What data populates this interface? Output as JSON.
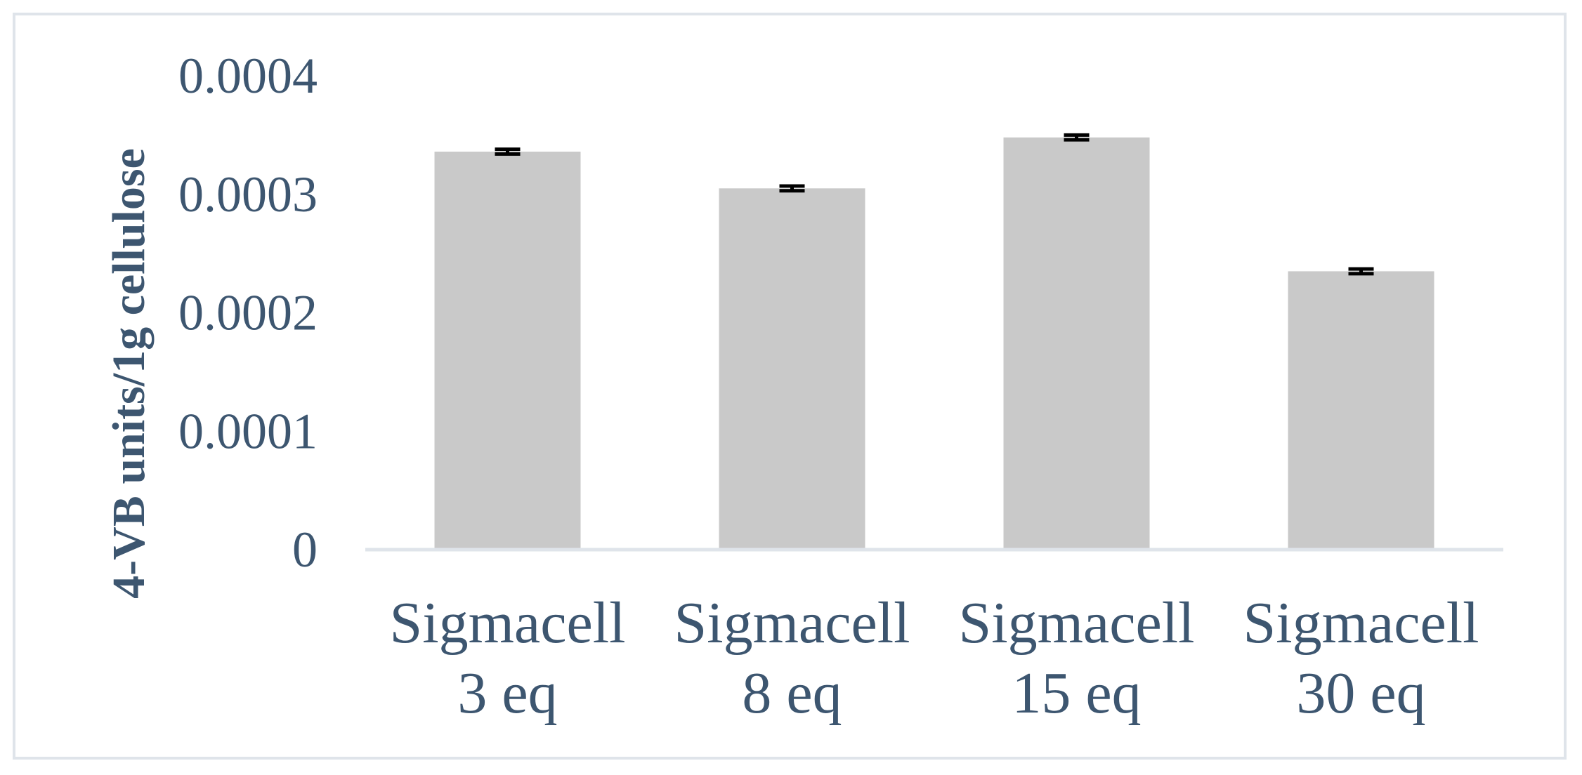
{
  "chart_data": {
    "type": "bar",
    "title": "",
    "xlabel": "",
    "ylabel": "4-VB units/1g cellulose",
    "categories": [
      [
        "Sigmacell",
        "3 eq"
      ],
      [
        "Sigmacell",
        "8 eq"
      ],
      [
        "Sigmacell",
        "15 eq"
      ],
      [
        "Sigmacell",
        "30 eq"
      ]
    ],
    "values": [
      0.000336,
      0.000305,
      0.000348,
      0.000235
    ],
    "error": [
      2e-06,
      2e-06,
      2e-06,
      2e-06
    ],
    "ylim": [
      0,
      0.0004
    ],
    "yticks": [
      0,
      0.0001,
      0.0002,
      0.0003,
      0.0004
    ],
    "ytick_labels": [
      "0",
      "0.0001",
      "0.0002",
      "0.0003",
      "0.0004"
    ],
    "grid": false,
    "legend": "none",
    "colors": {
      "bar": "#c9c9c9",
      "error_bar": "#000000",
      "axis": "#dfe4ea",
      "text": "#3d5670",
      "frame": "#dfe4ea"
    }
  }
}
